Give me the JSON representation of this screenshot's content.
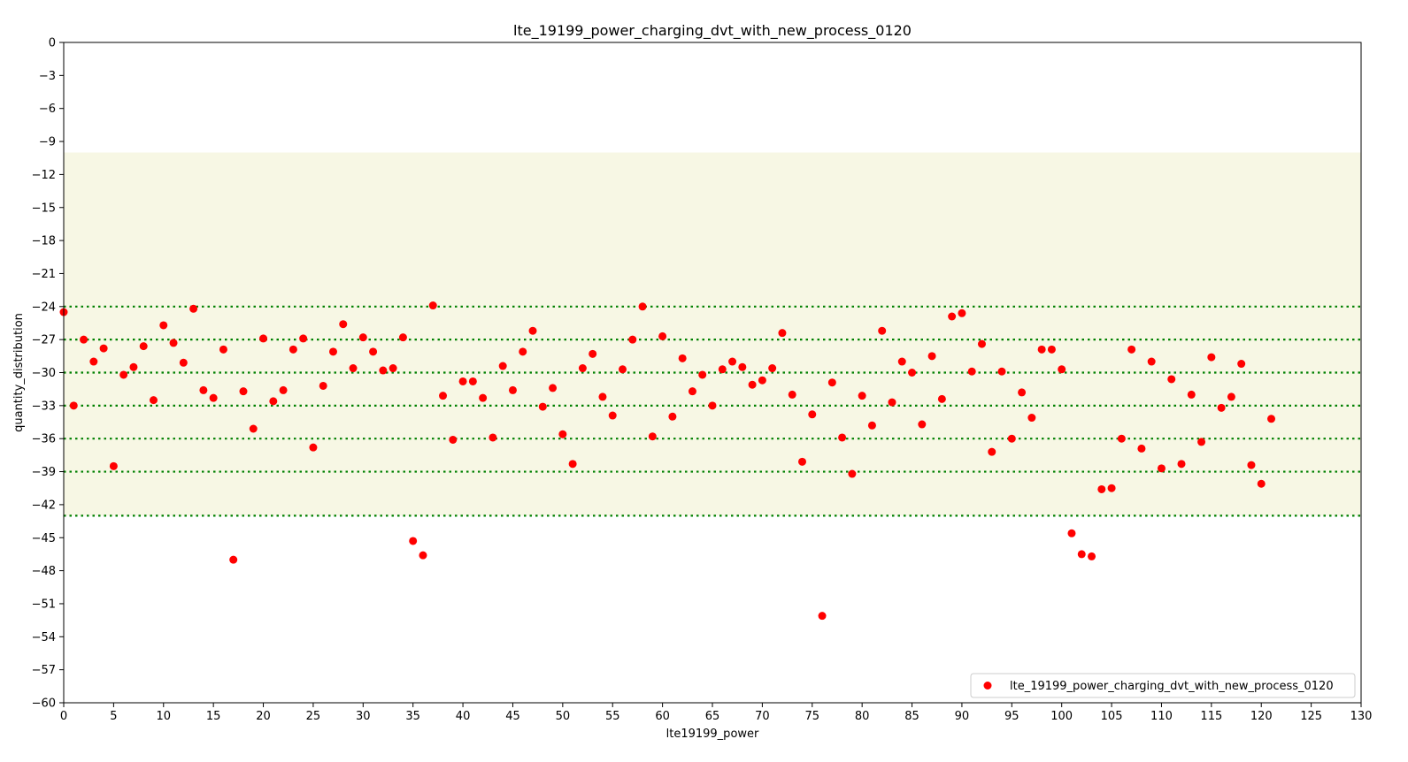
{
  "chart_data": {
    "type": "scatter",
    "title": "lte_19199_power_charging_dvt_with_new_process_0120",
    "xlabel": "lte19199_power",
    "ylabel": "quantity_distribution",
    "xlim": [
      0,
      130
    ],
    "ylim": [
      -60,
      0
    ],
    "xticks": [
      0,
      5,
      10,
      15,
      20,
      25,
      30,
      35,
      40,
      45,
      50,
      55,
      60,
      65,
      70,
      75,
      80,
      85,
      90,
      95,
      100,
      105,
      110,
      115,
      120,
      125,
      130
    ],
    "yticks": [
      0,
      -3,
      -6,
      -9,
      -12,
      -15,
      -18,
      -21,
      -24,
      -27,
      -30,
      -33,
      -36,
      -39,
      -42,
      -45,
      -48,
      -51,
      -54,
      -57,
      -60
    ],
    "ytick_labels": [
      "0",
      "−3",
      "−6",
      "−9",
      "−12",
      "−15",
      "−18",
      "−21",
      "−24",
      "−27",
      "−30",
      "−33",
      "−36",
      "−39",
      "−42",
      "−45",
      "−48",
      "−51",
      "−54",
      "−57",
      "−60"
    ],
    "band": {
      "from": -10,
      "to": -43,
      "color": "#f7f7e4"
    },
    "reference_lines": [
      -24,
      -27,
      -30,
      -33,
      -36,
      -39,
      -43
    ],
    "reference_line_color": "#008000",
    "legend_position": "lower-right",
    "grid": false,
    "series": [
      {
        "name": "lte_19199_power_charging_dvt_with_new_process_0120",
        "color": "#ff0000",
        "x": [
          0,
          1,
          2,
          3,
          4,
          5,
          6,
          7,
          8,
          9,
          10,
          11,
          12,
          13,
          14,
          15,
          16,
          17,
          18,
          19,
          20,
          21,
          22,
          23,
          24,
          25,
          26,
          27,
          28,
          29,
          30,
          31,
          32,
          33,
          34,
          35,
          36,
          37,
          38,
          39,
          40,
          41,
          42,
          43,
          44,
          45,
          46,
          47,
          48,
          49,
          50,
          51,
          52,
          53,
          54,
          55,
          56,
          57,
          58,
          59,
          60,
          61,
          62,
          63,
          64,
          65,
          66,
          67,
          68,
          69,
          70,
          71,
          72,
          73,
          74,
          75,
          76,
          77,
          78,
          79,
          80,
          81,
          82,
          83,
          84,
          85,
          86,
          87,
          88,
          89,
          90,
          91,
          92,
          93,
          94,
          95,
          96,
          97,
          98,
          99,
          100,
          101,
          102,
          103,
          104,
          105,
          106,
          107,
          108,
          109,
          110,
          111,
          112,
          113,
          114,
          115,
          116,
          117,
          118,
          119,
          120,
          121
        ],
        "y": [
          -24.5,
          -33.0,
          -27.0,
          -29.0,
          -27.8,
          -38.5,
          -30.2,
          -29.5,
          -27.6,
          -32.5,
          -25.7,
          -27.3,
          -29.1,
          -24.2,
          -31.6,
          -32.3,
          -27.9,
          -47.0,
          -31.7,
          -35.1,
          -26.9,
          -32.6,
          -31.6,
          -27.9,
          -26.9,
          -36.8,
          -31.2,
          -28.1,
          -25.6,
          -29.6,
          -26.8,
          -28.1,
          -29.8,
          -29.6,
          -26.8,
          -45.3,
          -46.6,
          -23.9,
          -32.1,
          -36.1,
          -30.8,
          -30.8,
          -32.3,
          -35.9,
          -29.4,
          -31.6,
          -28.1,
          -26.2,
          -33.1,
          -31.4,
          -35.6,
          -38.3,
          -29.6,
          -28.3,
          -32.2,
          -33.9,
          -29.7,
          -27.0,
          -24.0,
          -35.8,
          -26.7,
          -34.0,
          -28.7,
          -31.7,
          -30.2,
          -33.0,
          -29.7,
          -29.0,
          -29.5,
          -31.1,
          -30.7,
          -29.6,
          -26.4,
          -32.0,
          -38.1,
          -33.8,
          -52.1,
          -30.9,
          -35.9,
          -39.2,
          -32.1,
          -34.8,
          -26.2,
          -32.7,
          -29.0,
          -30.0,
          -34.7,
          -28.5,
          -32.4,
          -24.9,
          -24.6,
          -29.9,
          -27.4,
          -37.2,
          -29.9,
          -36.0,
          -31.8,
          -34.1,
          -27.9,
          -27.9,
          -29.7,
          -44.6,
          -46.5,
          -46.7,
          -40.6,
          -40.5,
          -36.0,
          -27.9,
          -36.9,
          -29.0,
          -38.7,
          -30.6,
          -38.3,
          -32.0,
          -36.3,
          -28.6,
          -33.2,
          -32.2,
          -29.2,
          -38.4,
          -40.1,
          -34.2
        ]
      }
    ]
  }
}
